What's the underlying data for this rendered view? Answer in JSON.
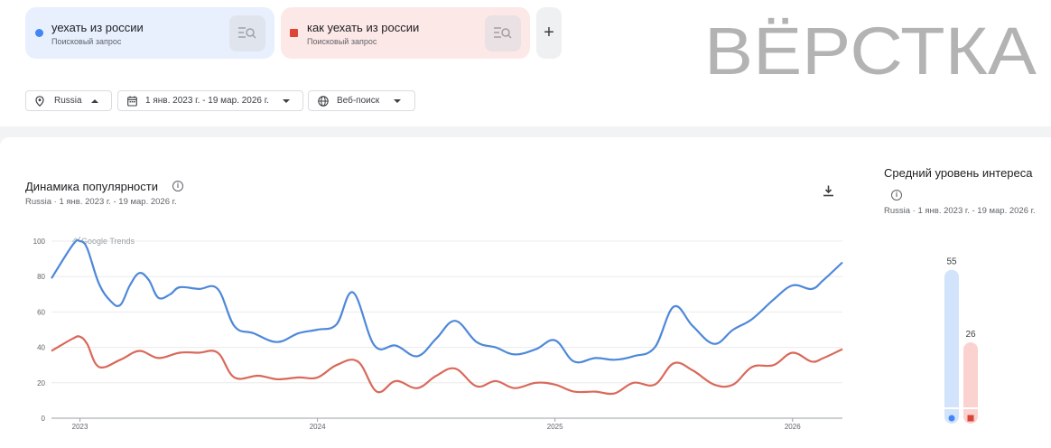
{
  "terms": [
    {
      "label": "уехать из россии",
      "sub": "Поисковый запрос",
      "color": "#4285f4"
    },
    {
      "label": "как уехать из россии",
      "sub": "Поисковый запрос",
      "color": "#db4437"
    }
  ],
  "add_button": "+",
  "logo_text": "ВЁРСТКА",
  "filters": {
    "region": "Russia",
    "period": "1 янв. 2023 г. - 19 мар. 2026 г.",
    "source": "Веб-поиск"
  },
  "chart": {
    "title": "Динамика популярности",
    "subtitle": "Russia · 1 янв. 2023 г. - 19 мар. 2026 г.",
    "watermark": "Google Trends"
  },
  "average": {
    "title": "Средний уровень интереса",
    "subtitle": "Russia · 1 янв. 2023 г. - 19 мар. 2026 г.",
    "values": [
      {
        "label": "55",
        "value": 55
      },
      {
        "label": "26",
        "value": 26
      }
    ]
  },
  "chart_data": {
    "type": "line",
    "ylim": [
      0,
      100
    ],
    "yticks": [
      "0",
      "20",
      "40",
      "60",
      "80",
      "100"
    ],
    "xlim": [
      2022.88,
      2026.21
    ],
    "xticks": [
      {
        "label": "2023",
        "x": 2023.0
      },
      {
        "label": "2024",
        "x": 2024.0
      },
      {
        "label": "2025",
        "x": 2025.0
      },
      {
        "label": "2026",
        "x": 2026.0
      }
    ],
    "grid": true,
    "series": [
      {
        "name": "уехать из россии",
        "color": "#4e88d9",
        "points": [
          [
            2022.88,
            79
          ],
          [
            2022.97,
            98
          ],
          [
            2023.0,
            100
          ],
          [
            2023.03,
            96
          ],
          [
            2023.08,
            76
          ],
          [
            2023.13,
            66
          ],
          [
            2023.17,
            64
          ],
          [
            2023.21,
            75
          ],
          [
            2023.25,
            82
          ],
          [
            2023.29,
            78
          ],
          [
            2023.33,
            68
          ],
          [
            2023.38,
            70
          ],
          [
            2023.42,
            74
          ],
          [
            2023.5,
            73
          ],
          [
            2023.58,
            73
          ],
          [
            2023.65,
            52
          ],
          [
            2023.73,
            48
          ],
          [
            2023.83,
            43
          ],
          [
            2023.92,
            48
          ],
          [
            2024.0,
            50
          ],
          [
            2024.08,
            53
          ],
          [
            2024.15,
            71
          ],
          [
            2024.24,
            41
          ],
          [
            2024.33,
            41
          ],
          [
            2024.42,
            35
          ],
          [
            2024.5,
            45
          ],
          [
            2024.58,
            55
          ],
          [
            2024.67,
            43
          ],
          [
            2024.75,
            40
          ],
          [
            2024.83,
            36
          ],
          [
            2024.92,
            39
          ],
          [
            2025.0,
            44
          ],
          [
            2025.08,
            32
          ],
          [
            2025.17,
            34
          ],
          [
            2025.25,
            33
          ],
          [
            2025.33,
            35
          ],
          [
            2025.42,
            40
          ],
          [
            2025.5,
            63
          ],
          [
            2025.58,
            52
          ],
          [
            2025.67,
            42
          ],
          [
            2025.75,
            50
          ],
          [
            2025.83,
            56
          ],
          [
            2025.92,
            67
          ],
          [
            2026.0,
            75
          ],
          [
            2026.08,
            73
          ],
          [
            2026.13,
            78
          ],
          [
            2026.21,
            88
          ]
        ]
      },
      {
        "name": "как уехать из россии",
        "color": "#d9695a",
        "points": [
          [
            2022.88,
            38
          ],
          [
            2022.97,
            45
          ],
          [
            2023.0,
            46
          ],
          [
            2023.03,
            42
          ],
          [
            2023.08,
            29
          ],
          [
            2023.17,
            33
          ],
          [
            2023.25,
            38
          ],
          [
            2023.33,
            34
          ],
          [
            2023.42,
            37
          ],
          [
            2023.5,
            37
          ],
          [
            2023.58,
            37
          ],
          [
            2023.65,
            23
          ],
          [
            2023.75,
            24
          ],
          [
            2023.83,
            22
          ],
          [
            2023.92,
            23
          ],
          [
            2024.0,
            23
          ],
          [
            2024.08,
            30
          ],
          [
            2024.17,
            32
          ],
          [
            2024.25,
            15
          ],
          [
            2024.33,
            21
          ],
          [
            2024.42,
            17
          ],
          [
            2024.5,
            24
          ],
          [
            2024.58,
            28
          ],
          [
            2024.67,
            18
          ],
          [
            2024.75,
            21
          ],
          [
            2024.83,
            17
          ],
          [
            2024.92,
            20
          ],
          [
            2025.0,
            19
          ],
          [
            2025.08,
            15
          ],
          [
            2025.17,
            15
          ],
          [
            2025.25,
            14
          ],
          [
            2025.33,
            20
          ],
          [
            2025.42,
            19
          ],
          [
            2025.5,
            31
          ],
          [
            2025.58,
            27
          ],
          [
            2025.67,
            19
          ],
          [
            2025.75,
            19
          ],
          [
            2025.83,
            29
          ],
          [
            2025.92,
            30
          ],
          [
            2026.0,
            37
          ],
          [
            2026.08,
            32
          ],
          [
            2026.13,
            34
          ],
          [
            2026.21,
            39
          ]
        ]
      }
    ]
  }
}
